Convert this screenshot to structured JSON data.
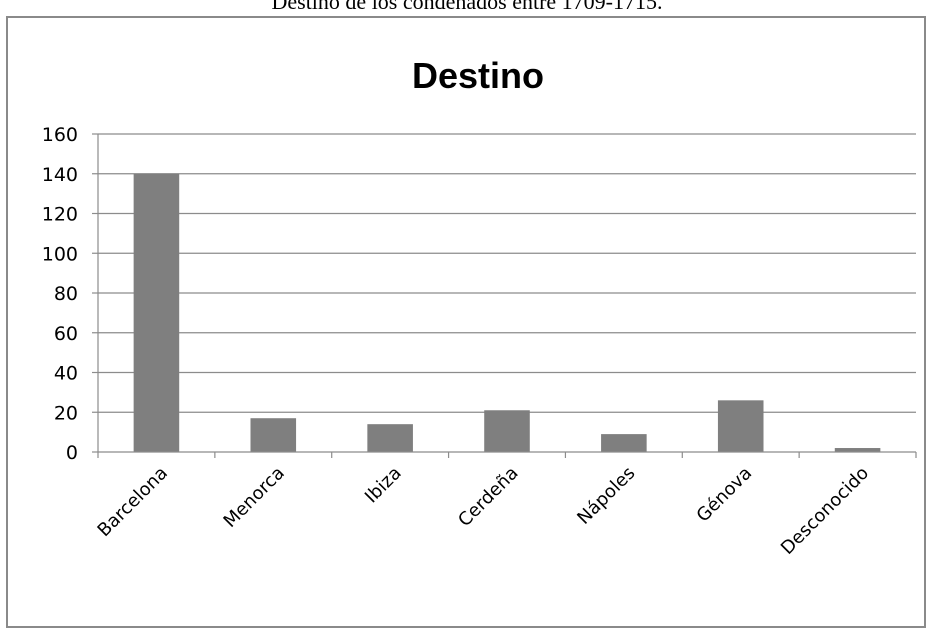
{
  "caption": "Destino de los condenados entre 1709-1715.",
  "chart_data": {
    "type": "bar",
    "title": "Destino",
    "xlabel": "",
    "ylabel": "",
    "categories": [
      "Barcelona",
      "Menorca",
      "Ibiza",
      "Cerdeña",
      "Nápoles",
      "Génova",
      "Desconocido"
    ],
    "values": [
      140,
      17,
      14,
      21,
      9,
      26,
      2
    ],
    "ylim": [
      0,
      160
    ],
    "yticks": [
      "0",
      "20",
      "40",
      "60",
      "80",
      "100",
      "120",
      "140",
      "160"
    ],
    "grid": true,
    "legend": "none",
    "bar_color": "#7f7f7f",
    "grid_color": "#8c8c8c"
  }
}
